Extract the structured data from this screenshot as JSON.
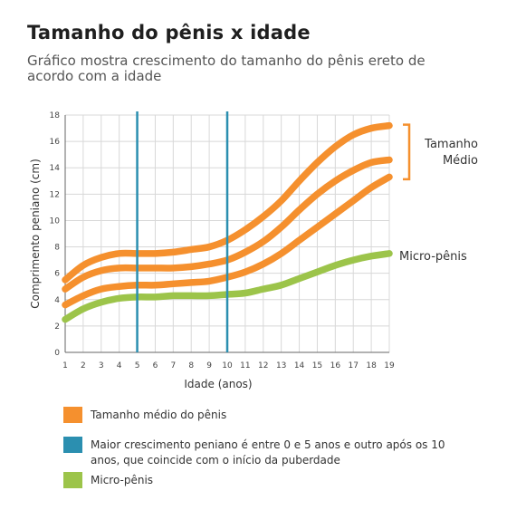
{
  "title": "Tamanho do pênis x idade",
  "subtitle": "Gráfico mostra crescimento do tamanho do pênis ereto de acordo com a idade",
  "colors": {
    "orange": "#f5902e",
    "green": "#9cc44a",
    "blue": "#2b8fb0",
    "grid": "#d8d8d8",
    "axis": "#666666"
  },
  "chart_data": {
    "type": "line",
    "xlabel": "Idade (anos)",
    "ylabel": "Comprimento peniano (cm)",
    "xlim": [
      1,
      19
    ],
    "ylim": [
      0,
      18
    ],
    "x_ticks": [
      1,
      2,
      3,
      4,
      5,
      6,
      7,
      8,
      9,
      10,
      11,
      12,
      13,
      14,
      15,
      16,
      17,
      18,
      19
    ],
    "y_ticks": [
      0,
      2,
      4,
      6,
      8,
      10,
      12,
      14,
      16,
      18
    ],
    "grid": true,
    "vertical_markers": [
      5,
      10
    ],
    "series": [
      {
        "group": "Tamanho médio do pênis",
        "color": "#f5902e",
        "x": [
          1,
          2,
          3,
          4,
          5,
          6,
          7,
          8,
          9,
          10,
          11,
          12,
          13,
          14,
          15,
          16,
          17,
          18,
          19
        ],
        "y": [
          5.5,
          6.6,
          7.2,
          7.5,
          7.5,
          7.5,
          7.6,
          7.8,
          8.0,
          8.5,
          9.3,
          10.3,
          11.5,
          13.0,
          14.4,
          15.6,
          16.5,
          17.0,
          17.2
        ]
      },
      {
        "group": "Tamanho médio do pênis",
        "color": "#f5902e",
        "x": [
          1,
          2,
          3,
          4,
          5,
          6,
          7,
          8,
          9,
          10,
          11,
          12,
          13,
          14,
          15,
          16,
          17,
          18,
          19
        ],
        "y": [
          4.8,
          5.7,
          6.2,
          6.4,
          6.4,
          6.4,
          6.4,
          6.5,
          6.7,
          7.0,
          7.6,
          8.4,
          9.5,
          10.8,
          12.0,
          13.0,
          13.8,
          14.4,
          14.6
        ]
      },
      {
        "group": "Tamanho médio do pênis",
        "color": "#f5902e",
        "x": [
          1,
          2,
          3,
          4,
          5,
          6,
          7,
          8,
          9,
          10,
          11,
          12,
          13,
          14,
          15,
          16,
          17,
          18,
          19
        ],
        "y": [
          3.6,
          4.3,
          4.8,
          5.0,
          5.1,
          5.1,
          5.2,
          5.3,
          5.4,
          5.7,
          6.1,
          6.7,
          7.5,
          8.5,
          9.5,
          10.5,
          11.5,
          12.5,
          13.3
        ]
      },
      {
        "group": "Micro-pênis",
        "color": "#9cc44a",
        "x": [
          1,
          2,
          3,
          4,
          5,
          6,
          7,
          8,
          9,
          10,
          11,
          12,
          13,
          14,
          15,
          16,
          17,
          18,
          19
        ],
        "y": [
          2.5,
          3.3,
          3.8,
          4.1,
          4.2,
          4.2,
          4.3,
          4.3,
          4.3,
          4.4,
          4.5,
          4.8,
          5.1,
          5.6,
          6.1,
          6.6,
          7.0,
          7.3,
          7.5
        ]
      }
    ],
    "annotations": {
      "average_label": "Tamanho\nMédio",
      "micro_label": "Micro-pênis"
    }
  },
  "legend": [
    {
      "color": "#f5902e",
      "label": "Tamanho médio do pênis"
    },
    {
      "color": "#2b8fb0",
      "label": "Maior crescimento peniano é entre 0 e 5 anos e outro após os 10 anos, que coincide com o início da puberdade"
    },
    {
      "color": "#9cc44a",
      "label": "Micro-pênis"
    }
  ]
}
